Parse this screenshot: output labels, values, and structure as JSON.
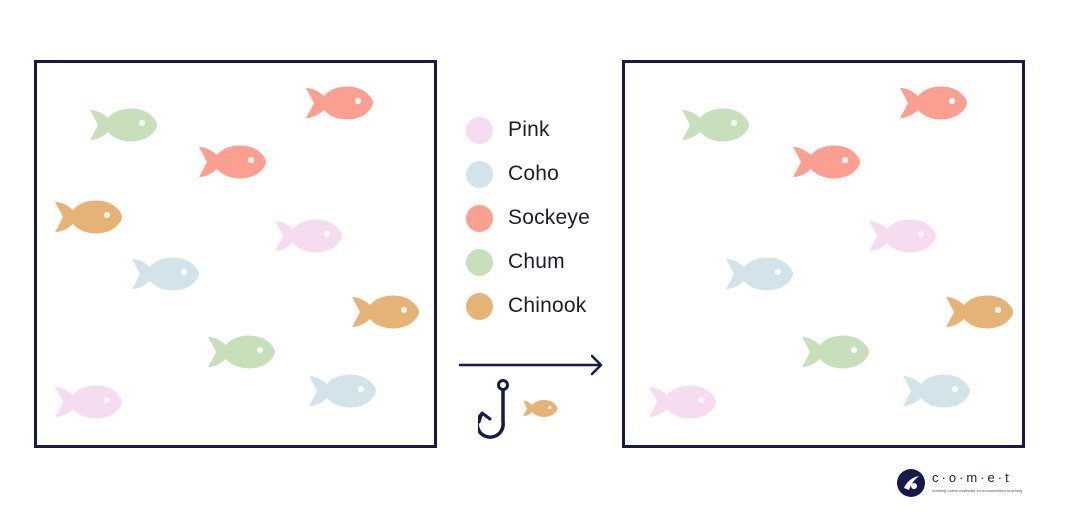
{
  "colors": {
    "frame": "#16194a",
    "eye": "#ffffff"
  },
  "species": [
    {
      "name": "Pink",
      "color": "#f5dcf1"
    },
    {
      "name": "Coho",
      "color": "#d2e4ea"
    },
    {
      "name": "Sockeye",
      "color": "#fba090"
    },
    {
      "name": "Chum",
      "color": "#c8dfbb"
    },
    {
      "name": "Chinook",
      "color": "#e6b377"
    }
  ],
  "pond_before": {
    "fish": [
      "Chum",
      "Sockeye",
      "Sockeye",
      "Chinook",
      "Pink",
      "Coho",
      "Chinook",
      "Chum",
      "Coho",
      "Pink"
    ]
  },
  "pond_after": {
    "fish": [
      "Chum",
      "Sockeye",
      "Sockeye",
      "Pink",
      "Coho",
      "Chinook",
      "Chum",
      "Coho",
      "Pink"
    ]
  },
  "caught": {
    "species": "Chinook",
    "icons": [
      "arrow-right-icon",
      "fishing-hook-icon",
      "fish-icon"
    ]
  },
  "logo": {
    "wordmark": "c·o·m·e·t",
    "tagline": "creating online materials for econometrics teaching"
  }
}
